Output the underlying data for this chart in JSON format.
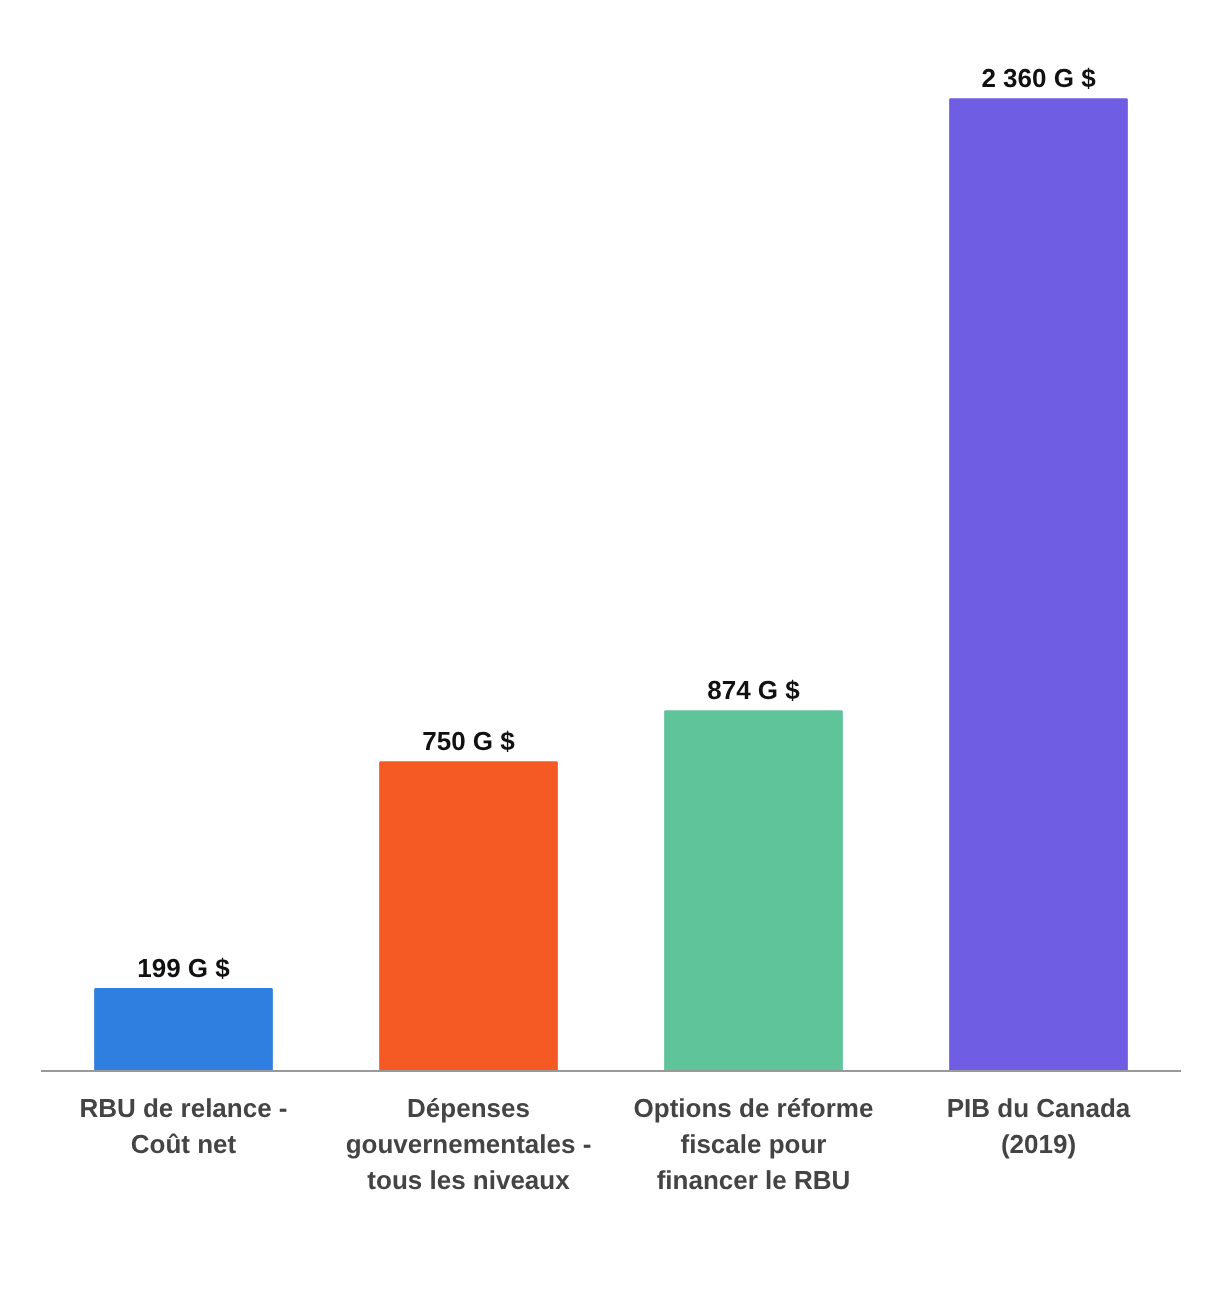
{
  "chart_data": {
    "type": "bar",
    "categories": [
      "RBU de relance - Coût net",
      "Dépenses gouvernementales - tous les niveaux",
      "Options de réforme fiscale pour financer le RBU",
      "PIB du Canada (2019)"
    ],
    "values": [
      199,
      750,
      874,
      2360
    ],
    "colors": [
      "#2e7fe0",
      "#f55a24",
      "#5fc49a",
      "#6f5de3"
    ],
    "value_labels": [
      "199 G $",
      "750 G $",
      "874 G $",
      "2 360 G $"
    ],
    "grid": false
  }
}
